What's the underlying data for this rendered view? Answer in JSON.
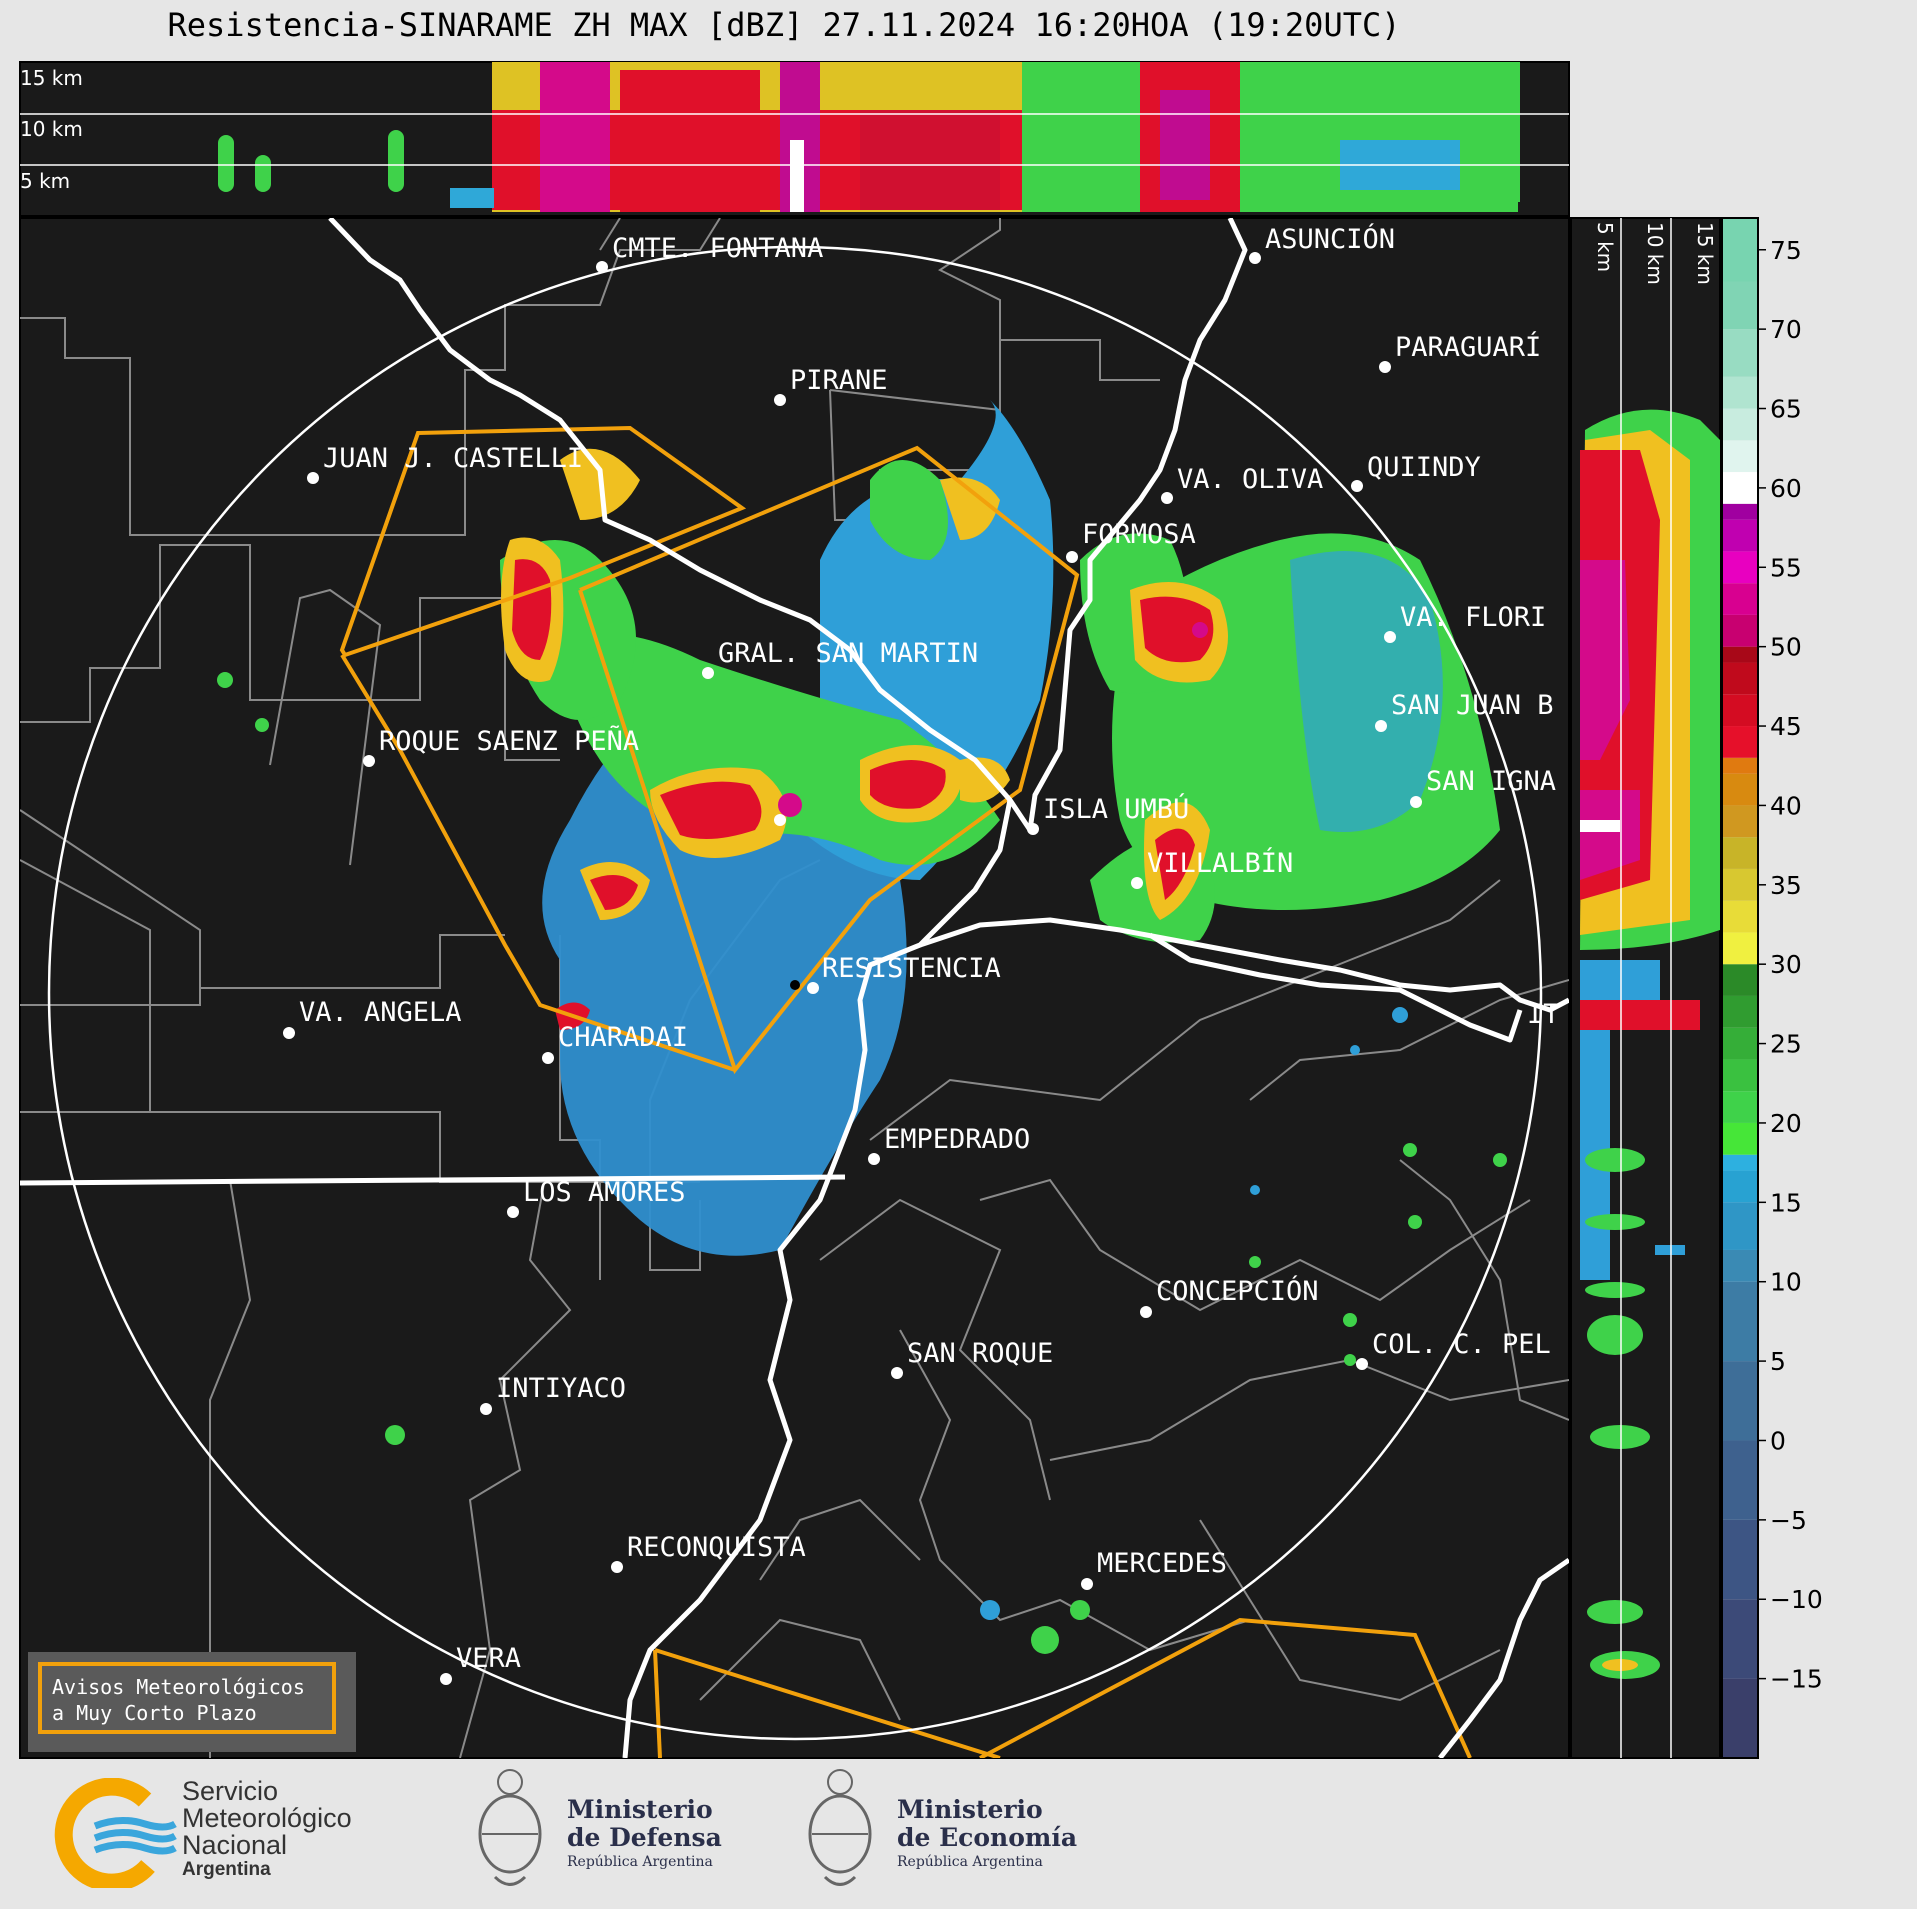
{
  "title": "Resistencia-SINARAME ZH MAX [dBZ] 27.11.2024 16:20HOA (19:20UTC)",
  "top_profile_labels": [
    "15 km",
    "10 km",
    "5 km"
  ],
  "side_profile_labels": [
    "5 km",
    "10 km",
    "15 km"
  ],
  "colorbar": {
    "ticks": [
      "75",
      "70",
      "65",
      "60",
      "55",
      "50",
      "45",
      "40",
      "35",
      "30",
      "25",
      "20",
      "15",
      "10",
      "5",
      "0",
      "−5",
      "−10",
      "−15"
    ],
    "unit": "dBZ"
  },
  "places": [
    {
      "name": "CMTE. FONTANA"
    },
    {
      "name": "ASUNCIÓN"
    },
    {
      "name": "PARAGUARÍ"
    },
    {
      "name": "PIRANE"
    },
    {
      "name": "JUAN J. CASTELLI"
    },
    {
      "name": "VA. OLIVA"
    },
    {
      "name": "QUIINDY"
    },
    {
      "name": "FORMOSA"
    },
    {
      "name": "VA. FLORI"
    },
    {
      "name": "GRAL. SAN MARTIN"
    },
    {
      "name": "SAN JUAN B"
    },
    {
      "name": "ROQUE SAENZ PEÑA"
    },
    {
      "name": "SAN IGNA"
    },
    {
      "name": "ISLA UMBÚ"
    },
    {
      "name": "VILLALBÍN"
    },
    {
      "name": "RESISTENCIA"
    },
    {
      "name": "VA. ANGELA"
    },
    {
      "name": "CHARADAI"
    },
    {
      "name": "IT"
    },
    {
      "name": "EMPEDRADO"
    },
    {
      "name": "LOS AMORES"
    },
    {
      "name": "CONCEPCIÓN"
    },
    {
      "name": "SAN ROQUE"
    },
    {
      "name": "COL. C. PEL"
    },
    {
      "name": "INTIYACO"
    },
    {
      "name": "RECONQUISTA"
    },
    {
      "name": "MERCEDES"
    },
    {
      "name": "VERA"
    }
  ],
  "warning_box": {
    "line1": "Avisos Meteorológicos",
    "line2": "a Muy Corto Plazo"
  },
  "logos": {
    "smn": {
      "line1": "Servicio",
      "line2": "Meteorológico",
      "line3": "Nacional",
      "line4": "Argentina"
    },
    "defensa": {
      "line1": "Ministerio",
      "line2": "de Defensa",
      "line3": "República Argentina"
    },
    "economia": {
      "line1": "Ministerio",
      "line2": "de Economía",
      "line3": "República Argentina"
    }
  },
  "colors": {
    "background": "#1a1a1a",
    "warning": "#f2a10c",
    "range_ring": "#ffffff",
    "borders": "#8a8a8a"
  }
}
